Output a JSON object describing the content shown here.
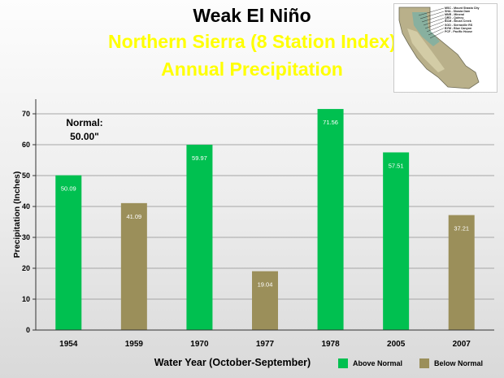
{
  "title": "Weak El Niño",
  "subtitle_line1": "Northern Sierra (8 Station Index)",
  "subtitle_line2": "Annual Precipitation",
  "colors": {
    "above": "#00c050",
    "below": "#9b8f5a",
    "subtitle": "#ffff00"
  },
  "normal_annotation": {
    "label": "Normal:",
    "value": "50.00\""
  },
  "map_inset": {
    "stations": [
      "MSC - Mount Shasta City",
      "SHA - Shasta Dam",
      "MNR - Mineral",
      "QRD - Quincy",
      "BCM - Brush Creek",
      "SOD - Sierraville RS",
      "BYM - Blue Canyon",
      "PCF - Pacific House"
    ]
  },
  "chart_data": {
    "type": "bar",
    "categories": [
      "1954",
      "1959",
      "1970",
      "1977",
      "1978",
      "2005",
      "2007"
    ],
    "values": [
      50.09,
      41.09,
      59.97,
      19.04,
      71.56,
      57.51,
      37.21
    ],
    "data_labels": [
      "50.09",
      "41.09",
      "59.97",
      "19.04",
      "71.56",
      "57.51",
      "37.21"
    ],
    "classes": [
      "above",
      "below",
      "above",
      "below",
      "above",
      "above",
      "below"
    ],
    "xlabel": "Water Year (October-September)",
    "ylabel": "Precipitation (Inches)",
    "ylim": [
      0,
      70
    ],
    "yticks": [
      0,
      10,
      20,
      30,
      40,
      50,
      60,
      70
    ],
    "grid": true,
    "legend": [
      {
        "key": "above",
        "label": "Above Normal"
      },
      {
        "key": "below",
        "label": "Below Normal"
      }
    ],
    "legend_position": "bottom-right"
  }
}
